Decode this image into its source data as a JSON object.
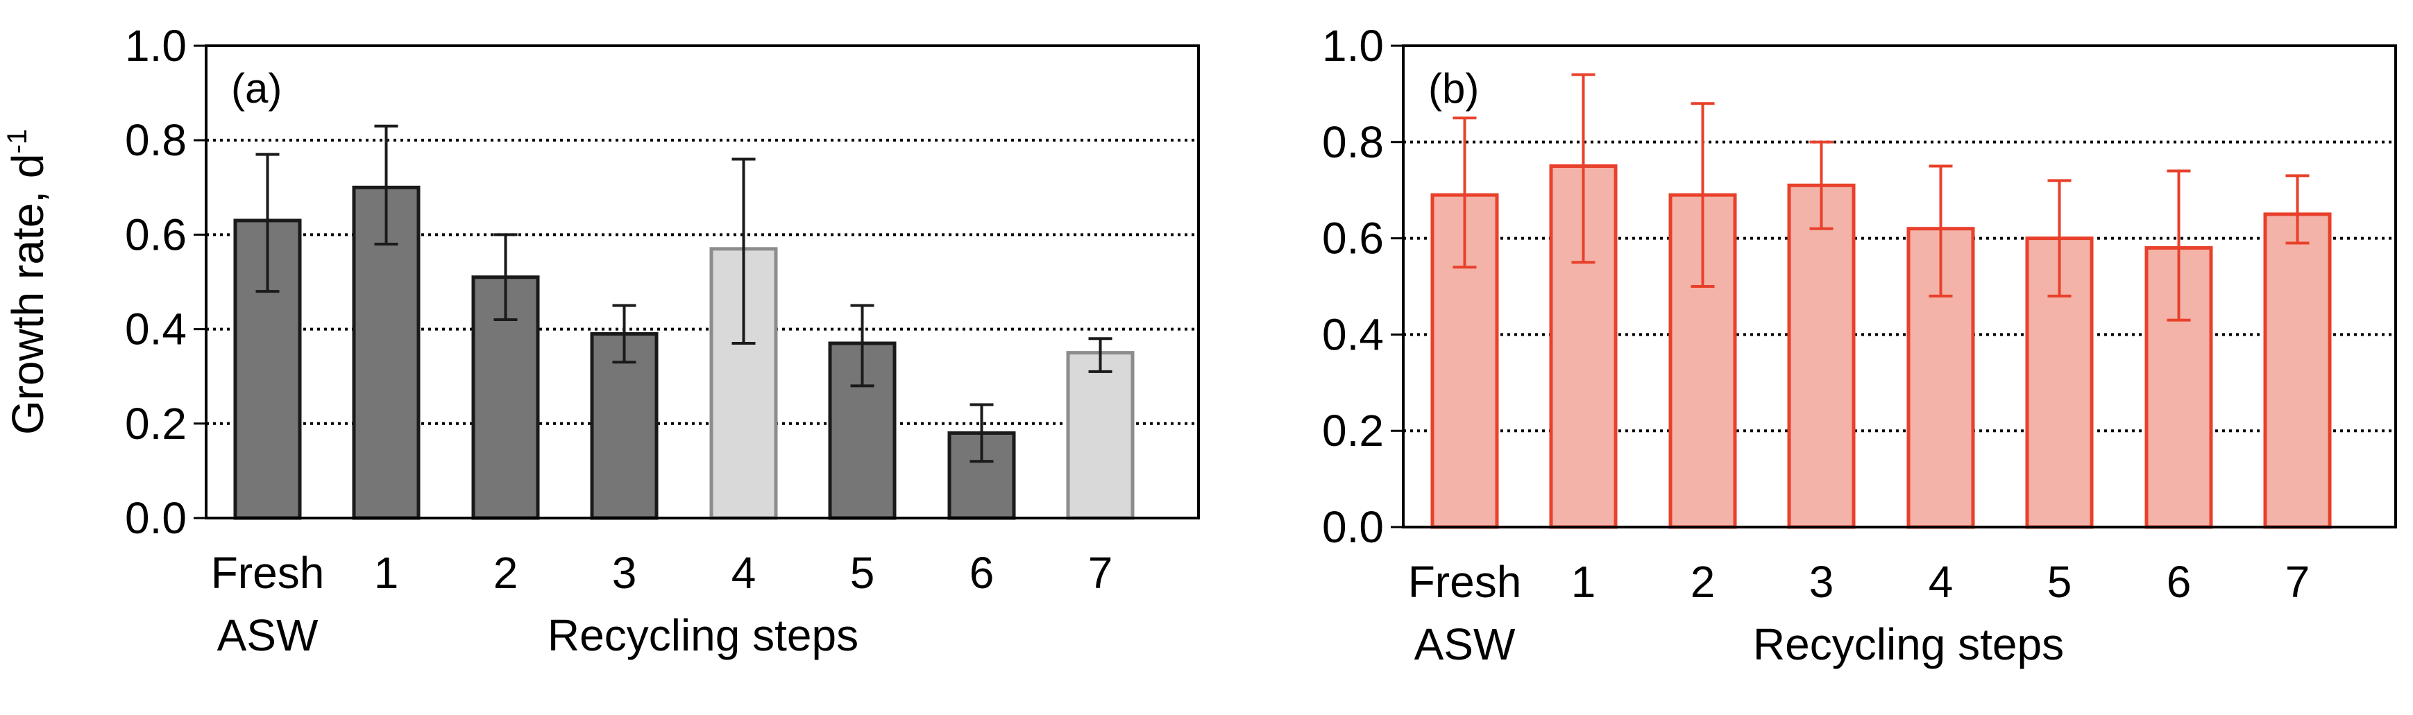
{
  "chart_data": [
    {
      "type": "bar",
      "panel_label": "(a)",
      "categories": [
        "1",
        "2",
        "3",
        "4",
        "5",
        "6",
        "7"
      ],
      "fresh_label": [
        "Fresh",
        "ASW"
      ],
      "xlabel": "Recycling steps",
      "ylabel": "Growth rate, d",
      "ylabel_superscript": "-1",
      "ylim": [
        0,
        1.0
      ],
      "yticks": [
        "0.0",
        "0.2",
        "0.4",
        "0.6",
        "0.8",
        "1.0"
      ],
      "grid": "horizontal dotted",
      "series": [
        {
          "name": "Growth rate",
          "bars": [
            {
              "category": "Fresh ASW",
              "value": 0.63,
              "err_low": 0.48,
              "err_high": 0.77,
              "style": "dark"
            },
            {
              "category": "1",
              "value": 0.7,
              "err_low": 0.58,
              "err_high": 0.83,
              "style": "dark"
            },
            {
              "category": "2",
              "value": 0.51,
              "err_low": 0.42,
              "err_high": 0.6,
              "style": "dark"
            },
            {
              "category": "3",
              "value": 0.39,
              "err_low": 0.33,
              "err_high": 0.45,
              "style": "dark"
            },
            {
              "category": "4",
              "value": 0.57,
              "err_low": 0.37,
              "err_high": 0.76,
              "style": "light"
            },
            {
              "category": "5",
              "value": 0.37,
              "err_low": 0.28,
              "err_high": 0.45,
              "style": "dark"
            },
            {
              "category": "6",
              "value": 0.18,
              "err_low": 0.12,
              "err_high": 0.24,
              "style": "dark"
            },
            {
              "category": "7",
              "value": 0.35,
              "err_low": 0.31,
              "err_high": 0.38,
              "style": "light"
            }
          ]
        }
      ],
      "colors": {
        "dark_fill": "#767676",
        "dark_stroke": "#1a1a1a",
        "light_fill": "#d9d9d9",
        "light_stroke": "#8c8c8c",
        "error": "#1a1a1a"
      }
    },
    {
      "type": "bar",
      "panel_label": "(b)",
      "categories": [
        "1",
        "2",
        "3",
        "4",
        "5",
        "6",
        "7"
      ],
      "fresh_label": [
        "Fresh",
        "ASW"
      ],
      "xlabel": "Recycling steps",
      "ylabel": "",
      "ylim": [
        0,
        1.0
      ],
      "yticks": [
        "0.0",
        "0.2",
        "0.4",
        "0.6",
        "0.8",
        "1.0"
      ],
      "grid": "horizontal dotted",
      "series": [
        {
          "name": "Growth rate",
          "bars": [
            {
              "category": "Fresh ASW",
              "value": 0.69,
              "err_low": 0.54,
              "err_high": 0.85,
              "style": "red"
            },
            {
              "category": "1",
              "value": 0.75,
              "err_low": 0.55,
              "err_high": 0.94,
              "style": "red"
            },
            {
              "category": "2",
              "value": 0.69,
              "err_low": 0.5,
              "err_high": 0.88,
              "style": "red"
            },
            {
              "category": "3",
              "value": 0.71,
              "err_low": 0.62,
              "err_high": 0.8,
              "style": "red"
            },
            {
              "category": "4",
              "value": 0.62,
              "err_low": 0.48,
              "err_high": 0.75,
              "style": "red"
            },
            {
              "category": "5",
              "value": 0.6,
              "err_low": 0.48,
              "err_high": 0.72,
              "style": "red"
            },
            {
              "category": "6",
              "value": 0.58,
              "err_low": 0.43,
              "err_high": 0.74,
              "style": "red"
            },
            {
              "category": "7",
              "value": 0.65,
              "err_low": 0.59,
              "err_high": 0.73,
              "style": "red"
            }
          ]
        }
      ],
      "colors": {
        "red_fill": "#f4b3a9",
        "red_stroke": "#e8402a",
        "error": "#e8402a"
      }
    }
  ]
}
